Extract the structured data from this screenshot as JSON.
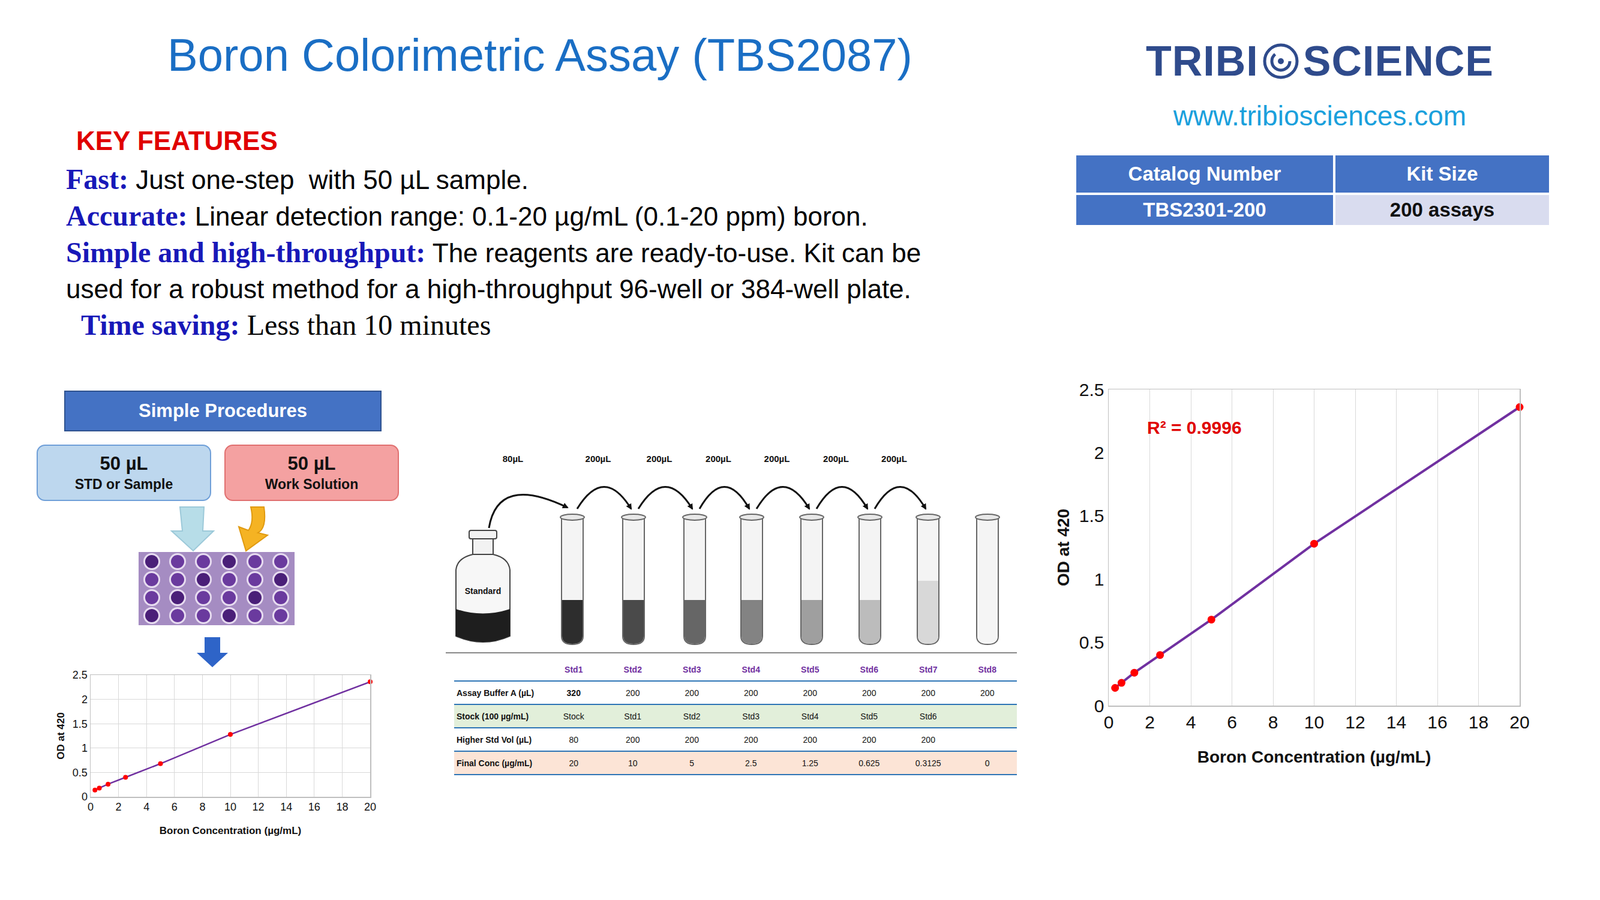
{
  "header": {
    "title": "Boron Colorimetric Assay (TBS2087)",
    "logo": [
      "TRIBI",
      "SCIENCE"
    ],
    "url": "www.tribiosciences.com"
  },
  "catalog_table": {
    "columns": [
      "Catalog Number",
      "Kit Size"
    ],
    "rows": [
      [
        "TBS2301-200",
        "200 assays"
      ]
    ]
  },
  "key_features": {
    "heading": "KEY FEATURES",
    "items": [
      {
        "label": "Fast:",
        "text": "Just one-step  with 50 µL sample."
      },
      {
        "label": "Accurate:",
        "text": "Linear detection range: 0.1-20 µg/mL (0.1-20 ppm) boron."
      },
      {
        "label": "Simple and high-throughput:",
        "text": "The reagents are ready-to-use. Kit can be used for a robust method for a high-throughput 96-well or 384-well plate."
      },
      {
        "label": "Time saving:",
        "text": "Less than 10 minutes"
      }
    ]
  },
  "procedure": {
    "title": "Simple Procedures",
    "steps": [
      {
        "volume": "50 µL",
        "text": "STD or Sample"
      },
      {
        "volume": "50 µL",
        "text": "Work Solution"
      }
    ]
  },
  "dilution": {
    "bottle_label": "Standard",
    "transfers": [
      "80µL",
      "200µL",
      "200µL",
      "200µL",
      "200µL",
      "200µL",
      "200µL"
    ],
    "table": {
      "columns": [
        null,
        "Std1",
        "Std2",
        "Std3",
        "Std4",
        "Std5",
        "Std6",
        "Std7",
        "Std8"
      ],
      "rows": [
        [
          "Assay Buffer A (µL)",
          "320",
          "200",
          "200",
          "200",
          "200",
          "200",
          "200",
          "200"
        ],
        [
          "Stock (100 µg/mL)",
          "Stock",
          "Std1",
          "Std2",
          "Std3",
          "Std4",
          "Std5",
          "Std6",
          null
        ],
        [
          "Higher Std Vol (µL)",
          "80",
          "200",
          "200",
          "200",
          "200",
          "200",
          "200",
          null
        ],
        [
          "Final Conc (µg/mL)",
          "20",
          "10",
          "5",
          "2.5",
          "1.25",
          "0.625",
          "0.3125",
          "0"
        ]
      ]
    }
  },
  "chart_data": [
    {
      "type": "line",
      "x": [
        0.3125,
        0.625,
        1.25,
        2.5,
        5,
        10,
        20
      ],
      "values": [
        0.14,
        0.18,
        0.26,
        0.4,
        0.68,
        1.28,
        2.36
      ],
      "xlabel": "Boron Concentration (µg/mL)",
      "ylabel": "OD at 420",
      "xlim": [
        0,
        20
      ],
      "ylim": [
        0,
        2.5
      ],
      "xticks": [
        0,
        2,
        4,
        6,
        8,
        10,
        12,
        14,
        16,
        18,
        20
      ],
      "yticks": [
        0,
        0.5,
        1,
        1.5,
        2,
        2.5
      ],
      "color": "#7030a0",
      "marker": "circle",
      "grid": "x",
      "annotation": "R² = 0.9996"
    },
    {
      "type": "line",
      "x": [
        0.3125,
        0.625,
        1.25,
        2.5,
        5,
        10,
        20
      ],
      "values": [
        0.14,
        0.18,
        0.26,
        0.4,
        0.68,
        1.28,
        2.36
      ],
      "xlabel": "Boron Concentration (µg/mL)",
      "ylabel": "OD at 420",
      "xlim": [
        0,
        20
      ],
      "ylim": [
        0,
        2.5
      ],
      "xticks": [
        0,
        2,
        4,
        6,
        8,
        10,
        12,
        14,
        16,
        18,
        20
      ],
      "yticks": [
        0,
        0.5,
        1,
        1.5,
        2,
        2.5
      ],
      "color": "#7030a0",
      "marker": "circle",
      "grid": true
    }
  ]
}
